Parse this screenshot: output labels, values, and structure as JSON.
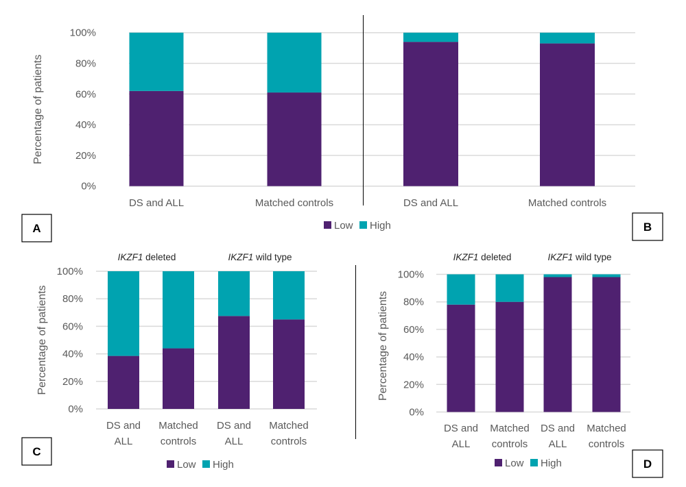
{
  "colors": {
    "low": "#4f2170",
    "high": "#00a3b0",
    "grid": "#d9d9d9",
    "axis": "#000000"
  },
  "legend": [
    {
      "key": "low",
      "label": "Low"
    },
    {
      "key": "high",
      "label": "High"
    }
  ],
  "chart_data": [
    {
      "panel": "A",
      "type": "bar",
      "stacked": true,
      "ylabel": "Percentage of patients",
      "ylim": [
        0,
        100
      ],
      "yticks": [
        "0%",
        "20%",
        "40%",
        "60%",
        "80%",
        "100%"
      ],
      "grid": true,
      "legend_position": "bottom",
      "categories": [
        "DS and ALL",
        "Matched controls"
      ],
      "series": [
        {
          "name": "Low",
          "values": [
            62,
            61
          ]
        },
        {
          "name": "High",
          "values": [
            38,
            39
          ]
        }
      ]
    },
    {
      "panel": "B",
      "type": "bar",
      "stacked": true,
      "ylabel": "Percentage of patients",
      "ylim": [
        0,
        100
      ],
      "grid": true,
      "legend_position": "bottom",
      "categories": [
        "DS and ALL",
        "Matched controls"
      ],
      "series": [
        {
          "name": "Low",
          "values": [
            94,
            93
          ]
        },
        {
          "name": "High",
          "values": [
            6,
            7
          ]
        }
      ]
    },
    {
      "panel": "C",
      "type": "bar",
      "stacked": true,
      "ylabel": "Percentage of patients",
      "ylim": [
        0,
        100
      ],
      "yticks": [
        "0%",
        "20%",
        "40%",
        "60%",
        "80%",
        "100%"
      ],
      "grid": true,
      "legend_position": "bottom",
      "groups": [
        {
          "label_italic": "IKZF1",
          "label_rest": " deleted"
        },
        {
          "label_italic": "IKZF1",
          "label_rest": " wild type"
        }
      ],
      "categories": [
        [
          "DS and",
          "ALL"
        ],
        [
          "Matched",
          "controls"
        ],
        [
          "DS and",
          "ALL"
        ],
        [
          "Matched",
          "controls"
        ]
      ],
      "series": [
        {
          "name": "Low",
          "values": [
            38.5,
            44,
            67.5,
            65
          ]
        },
        {
          "name": "High",
          "values": [
            61.5,
            56,
            32.5,
            35
          ]
        }
      ]
    },
    {
      "panel": "D",
      "type": "bar",
      "stacked": true,
      "ylabel": "Percentage of patients",
      "ylim": [
        0,
        100
      ],
      "yticks": [
        "0%",
        "20%",
        "40%",
        "60%",
        "80%",
        "100%"
      ],
      "grid": true,
      "legend_position": "bottom",
      "groups": [
        {
          "label_italic": "IKZF1",
          "label_rest": " deleted"
        },
        {
          "label_italic": "IKZF1",
          "label_rest": " wild type"
        }
      ],
      "categories": [
        [
          "DS and",
          "ALL"
        ],
        [
          "Matched",
          "controls"
        ],
        [
          "DS and",
          "ALL"
        ],
        [
          "Matched",
          "controls"
        ]
      ],
      "series": [
        {
          "name": "Low",
          "values": [
            78,
            80,
            98,
            98
          ]
        },
        {
          "name": "High",
          "values": [
            22,
            20,
            2,
            2
          ]
        }
      ]
    }
  ]
}
